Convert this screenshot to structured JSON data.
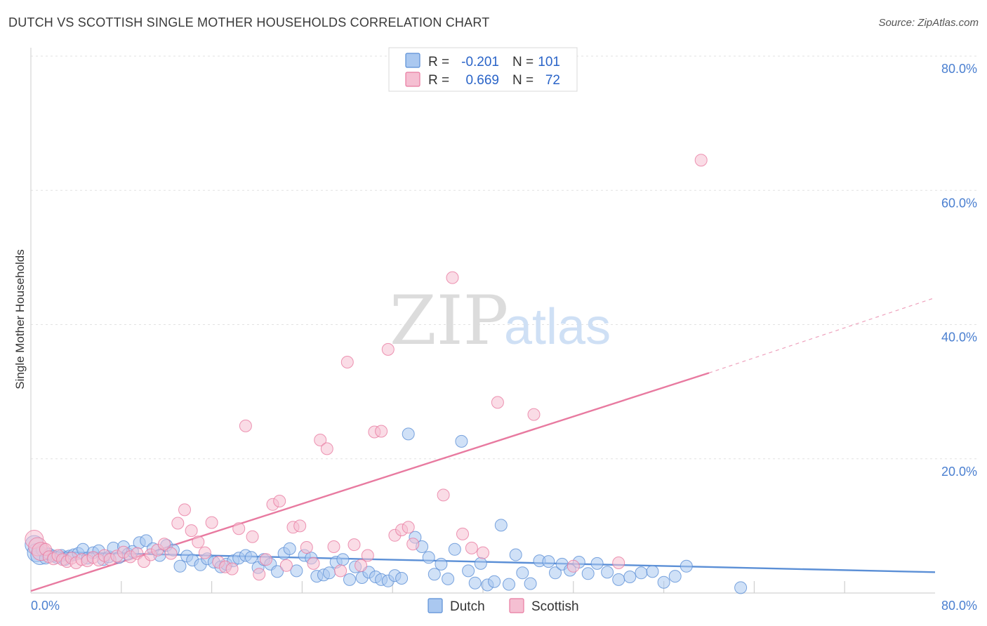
{
  "header": {
    "title": "DUTCH VS SCOTTISH SINGLE MOTHER HOUSEHOLDS CORRELATION CHART",
    "source": "Source: ZipAtlas.com"
  },
  "colors": {
    "dutch": "#5b8fd6",
    "dutch_fill": "#aac8f0",
    "scottish": "#e87aa0",
    "scottish_fill": "#f5bfd2",
    "tick": "#4a7fd0"
  },
  "watermark": {
    "zip": "ZIP",
    "atlas": "atlas"
  },
  "legend": {
    "rows": [
      {
        "r_label": "R =",
        "r_value": "-0.201",
        "n_label": "N =",
        "n_value": "101"
      },
      {
        "r_label": "R =",
        "r_value": "0.669",
        "n_label": "N =",
        "n_value": "72"
      }
    ]
  },
  "bottom_legend": {
    "dutch": "Dutch",
    "scottish": "Scottish"
  },
  "chart_data": {
    "type": "scatter",
    "title": "DUTCH VS SCOTTISH SINGLE MOTHER HOUSEHOLDS CORRELATION CHART",
    "xlabel": "",
    "ylabel": "Single Mother Households",
    "xlim": [
      0,
      80
    ],
    "ylim": [
      0,
      80
    ],
    "x_tick_labels": [
      "0.0%",
      "80.0%"
    ],
    "y_ticks": [
      20,
      40,
      60,
      80
    ],
    "y_tick_labels": [
      "20.0%",
      "40.0%",
      "60.0%",
      "80.0%"
    ],
    "grid": true,
    "series": [
      {
        "name": "Dutch",
        "R": -0.201,
        "N": 101,
        "trend": {
          "x0": 0,
          "y0": 6.2,
          "x1": 80,
          "y1": 3.1
        },
        "points": [
          [
            0.3,
            7.2
          ],
          [
            0.5,
            6.0
          ],
          [
            0.8,
            5.6
          ],
          [
            1.0,
            6.4
          ],
          [
            1.3,
            5.2
          ],
          [
            1.6,
            5.8
          ],
          [
            2.0,
            5.5
          ],
          [
            2.3,
            5.3
          ],
          [
            2.7,
            5.6
          ],
          [
            3.0,
            5.0
          ],
          [
            3.4,
            5.5
          ],
          [
            3.8,
            5.7
          ],
          [
            4.2,
            5.9
          ],
          [
            4.6,
            6.5
          ],
          [
            5.0,
            5.2
          ],
          [
            5.5,
            6.0
          ],
          [
            6.0,
            6.3
          ],
          [
            6.4,
            5.0
          ],
          [
            6.9,
            5.4
          ],
          [
            7.3,
            6.7
          ],
          [
            7.8,
            5.3
          ],
          [
            8.2,
            6.9
          ],
          [
            8.6,
            5.8
          ],
          [
            9.0,
            6.2
          ],
          [
            9.6,
            7.5
          ],
          [
            10.2,
            7.8
          ],
          [
            10.8,
            6.6
          ],
          [
            11.4,
            5.6
          ],
          [
            12.0,
            7.1
          ],
          [
            12.6,
            6.4
          ],
          [
            13.2,
            4.0
          ],
          [
            13.8,
            5.5
          ],
          [
            14.3,
            4.9
          ],
          [
            15.0,
            4.2
          ],
          [
            15.6,
            5.1
          ],
          [
            16.2,
            4.6
          ],
          [
            16.8,
            3.9
          ],
          [
            17.3,
            4.3
          ],
          [
            17.9,
            4.8
          ],
          [
            18.4,
            5.2
          ],
          [
            19.0,
            5.6
          ],
          [
            19.5,
            5.3
          ],
          [
            20.1,
            3.8
          ],
          [
            20.6,
            5.0
          ],
          [
            21.2,
            4.3
          ],
          [
            21.8,
            3.2
          ],
          [
            22.4,
            5.9
          ],
          [
            22.9,
            6.6
          ],
          [
            23.5,
            3.3
          ],
          [
            24.2,
            5.6
          ],
          [
            24.8,
            5.2
          ],
          [
            25.3,
            2.5
          ],
          [
            25.9,
            2.7
          ],
          [
            26.4,
            3.0
          ],
          [
            27.0,
            4.6
          ],
          [
            27.6,
            5.0
          ],
          [
            28.2,
            2.0
          ],
          [
            28.7,
            3.9
          ],
          [
            29.3,
            2.3
          ],
          [
            29.9,
            3.1
          ],
          [
            30.5,
            2.4
          ],
          [
            31.0,
            2.0
          ],
          [
            31.6,
            1.8
          ],
          [
            32.2,
            2.6
          ],
          [
            32.8,
            2.2
          ],
          [
            33.4,
            23.7
          ],
          [
            34.0,
            8.3
          ],
          [
            34.6,
            6.9
          ],
          [
            35.2,
            5.3
          ],
          [
            35.7,
            2.8
          ],
          [
            36.3,
            4.3
          ],
          [
            36.9,
            2.1
          ],
          [
            37.5,
            6.5
          ],
          [
            38.1,
            22.6
          ],
          [
            38.7,
            3.3
          ],
          [
            39.3,
            1.5
          ],
          [
            39.8,
            4.4
          ],
          [
            40.4,
            1.2
          ],
          [
            41.0,
            1.7
          ],
          [
            41.6,
            10.1
          ],
          [
            42.3,
            1.3
          ],
          [
            42.9,
            5.7
          ],
          [
            43.5,
            3.0
          ],
          [
            44.2,
            1.4
          ],
          [
            45.0,
            4.8
          ],
          [
            45.8,
            4.7
          ],
          [
            46.4,
            3.0
          ],
          [
            47.0,
            4.3
          ],
          [
            47.7,
            3.4
          ],
          [
            48.5,
            4.6
          ],
          [
            49.3,
            2.9
          ],
          [
            50.1,
            4.4
          ],
          [
            51.0,
            3.1
          ],
          [
            52.0,
            2.0
          ],
          [
            53.0,
            2.4
          ],
          [
            54.0,
            3.0
          ],
          [
            55.0,
            3.2
          ],
          [
            56.0,
            1.6
          ],
          [
            57.0,
            2.5
          ],
          [
            58.0,
            4.0
          ],
          [
            62.8,
            0.8
          ]
        ]
      },
      {
        "name": "Scottish",
        "R": 0.669,
        "N": 72,
        "trend": {
          "x0": 0,
          "y0": 0.3,
          "x1": 60,
          "y1": 32.8,
          "dash_x1": 80,
          "dash_y1": 44.0
        },
        "points": [
          [
            0.3,
            8.0
          ],
          [
            0.6,
            6.9
          ],
          [
            0.9,
            6.2
          ],
          [
            1.3,
            6.5
          ],
          [
            1.6,
            5.4
          ],
          [
            2.0,
            5.1
          ],
          [
            2.4,
            5.6
          ],
          [
            2.8,
            5.0
          ],
          [
            3.2,
            4.7
          ],
          [
            3.6,
            5.2
          ],
          [
            4.0,
            4.5
          ],
          [
            4.5,
            5.0
          ],
          [
            5.0,
            4.8
          ],
          [
            5.5,
            5.3
          ],
          [
            6.0,
            4.9
          ],
          [
            6.5,
            5.6
          ],
          [
            7.0,
            5.0
          ],
          [
            7.6,
            5.5
          ],
          [
            8.2,
            6.1
          ],
          [
            8.8,
            5.4
          ],
          [
            9.4,
            5.9
          ],
          [
            10.0,
            4.7
          ],
          [
            10.6,
            5.7
          ],
          [
            11.2,
            6.4
          ],
          [
            11.8,
            7.3
          ],
          [
            12.4,
            5.9
          ],
          [
            13.0,
            10.4
          ],
          [
            13.6,
            12.4
          ],
          [
            14.2,
            9.3
          ],
          [
            14.8,
            7.6
          ],
          [
            15.4,
            6.0
          ],
          [
            16.0,
            10.5
          ],
          [
            16.6,
            4.6
          ],
          [
            17.2,
            3.9
          ],
          [
            17.8,
            3.6
          ],
          [
            18.4,
            9.6
          ],
          [
            19.0,
            24.9
          ],
          [
            19.6,
            8.4
          ],
          [
            20.2,
            2.8
          ],
          [
            20.8,
            5.0
          ],
          [
            21.4,
            13.2
          ],
          [
            22.0,
            13.7
          ],
          [
            22.6,
            4.1
          ],
          [
            23.2,
            9.8
          ],
          [
            23.8,
            10.0
          ],
          [
            24.4,
            6.8
          ],
          [
            25.0,
            4.4
          ],
          [
            25.6,
            22.8
          ],
          [
            26.2,
            21.5
          ],
          [
            26.8,
            6.9
          ],
          [
            27.4,
            3.3
          ],
          [
            28.0,
            34.4
          ],
          [
            28.6,
            7.2
          ],
          [
            29.2,
            4.1
          ],
          [
            29.8,
            5.6
          ],
          [
            30.4,
            24.0
          ],
          [
            31.0,
            24.1
          ],
          [
            31.6,
            36.3
          ],
          [
            32.2,
            8.6
          ],
          [
            32.8,
            9.4
          ],
          [
            33.4,
            9.8
          ],
          [
            33.8,
            7.3
          ],
          [
            36.5,
            14.6
          ],
          [
            37.3,
            47.0
          ],
          [
            38.2,
            8.8
          ],
          [
            39.0,
            6.7
          ],
          [
            40.0,
            6.0
          ],
          [
            41.3,
            28.4
          ],
          [
            44.5,
            26.6
          ],
          [
            48.0,
            4.0
          ],
          [
            52.0,
            4.5
          ],
          [
            59.3,
            64.5
          ]
        ]
      }
    ]
  }
}
